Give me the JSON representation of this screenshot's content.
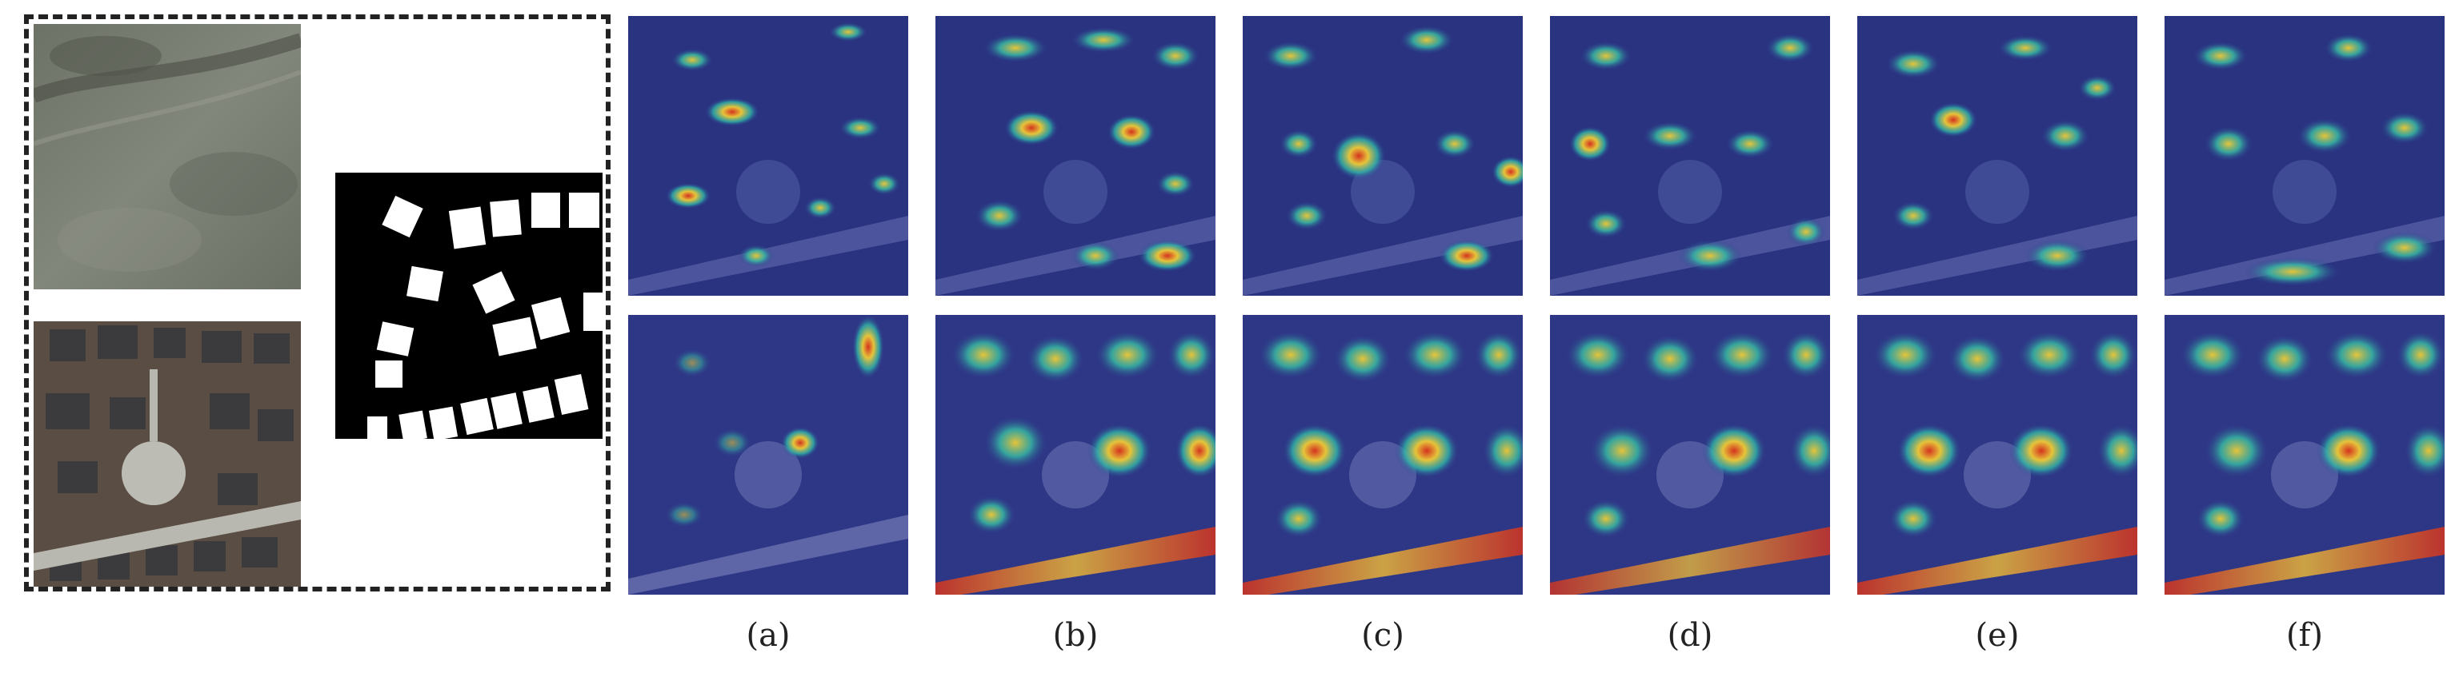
{
  "figure": {
    "captions": [
      "(a)",
      "(b)",
      "(c)",
      "(d)",
      "(e)",
      "(f)"
    ]
  },
  "colors": {
    "heat_cool": "#2b3a8f",
    "heat_warm": "#d9c23a",
    "heat_hot": "#d4331f",
    "roof": "#3b3b3d",
    "road": "#b9b8b0",
    "grass": "#7d8478"
  }
}
